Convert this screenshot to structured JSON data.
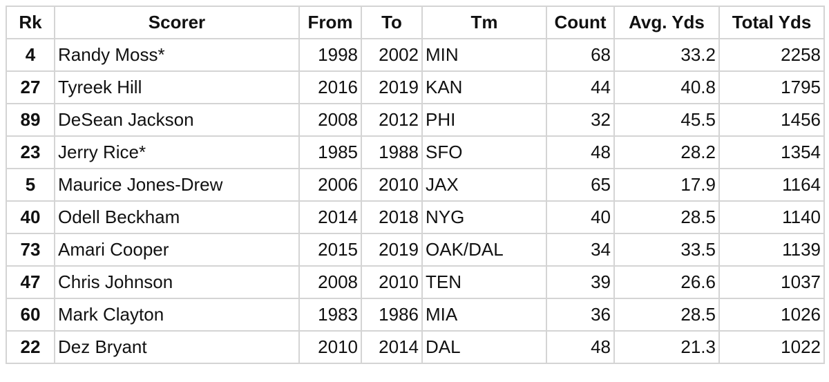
{
  "table": {
    "header": [
      "Rk",
      "Scorer",
      "From",
      "To",
      "Tm",
      "Count",
      "Avg. Yds",
      "Total Yds"
    ],
    "rows": [
      [
        4,
        "Randy Moss*",
        1998,
        2002,
        "MIN",
        68,
        33.2,
        2258
      ],
      [
        27,
        "Tyreek Hill",
        2016,
        2019,
        "KAN",
        44,
        40.8,
        1795
      ],
      [
        89,
        "DeSean Jackson",
        2008,
        2012,
        "PHI",
        32,
        45.5,
        1456
      ],
      [
        23,
        "Jerry Rice*",
        1985,
        1988,
        "SFO",
        48,
        28.2,
        1354
      ],
      [
        5,
        "Maurice Jones-Drew",
        2006,
        2010,
        "JAX",
        65,
        17.9,
        1164
      ],
      [
        40,
        "Odell Beckham",
        2014,
        2018,
        "NYG",
        40,
        28.5,
        1140
      ],
      [
        73,
        "Amari Cooper",
        2015,
        2019,
        "OAK/DAL",
        34,
        33.5,
        1139
      ],
      [
        47,
        "Chris Johnson",
        2008,
        2010,
        "TEN",
        39,
        26.6,
        1037
      ],
      [
        60,
        "Mark Clayton",
        1983,
        1986,
        "MIA",
        36,
        28.5,
        1026
      ],
      [
        22,
        "Dez Bryant",
        2010,
        2014,
        "DAL",
        48,
        21.3,
        1022
      ]
    ]
  }
}
